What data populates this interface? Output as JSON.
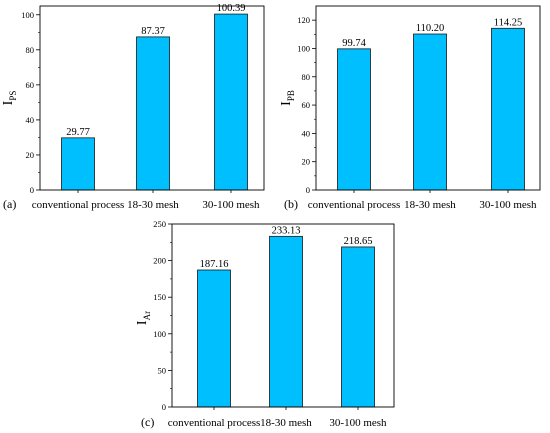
{
  "bar_color": "#00BFFF",
  "chart_data": [
    {
      "type": "bar",
      "panel_label": "(a)",
      "ylabel": "I",
      "ylabel_sub": "PS",
      "categories": [
        "conventional process",
        "18-30 mesh",
        "30-100 mesh"
      ],
      "values": [
        29.77,
        87.37,
        100.39
      ],
      "value_labels": [
        "29.77",
        "87.37",
        "100.39"
      ],
      "ylim": [
        0,
        105
      ],
      "yticks": [
        0,
        20,
        40,
        60,
        80,
        100
      ],
      "ytick_labels": [
        "0",
        "20",
        "40",
        "60",
        "80",
        "100"
      ],
      "grid": false
    },
    {
      "type": "bar",
      "panel_label": "(b)",
      "ylabel": "I",
      "ylabel_sub": "PB",
      "categories": [
        "conventional process",
        "18-30 mesh",
        "30-100 mesh"
      ],
      "values": [
        99.74,
        110.2,
        114.25
      ],
      "value_labels": [
        "99.74",
        "110.20",
        "114.25"
      ],
      "ylim": [
        0,
        130
      ],
      "yticks": [
        0,
        20,
        40,
        60,
        80,
        100,
        120
      ],
      "ytick_labels": [
        "0",
        "20",
        "40",
        "60",
        "80",
        "100",
        "120"
      ],
      "grid": false
    },
    {
      "type": "bar",
      "panel_label": "(c)",
      "ylabel": "I",
      "ylabel_sub": "Ar",
      "categories": [
        "conventional process",
        "18-30 mesh",
        "30-100 mesh"
      ],
      "values": [
        187.16,
        233.13,
        218.65
      ],
      "value_labels": [
        "187.16",
        "233.13",
        "218.65"
      ],
      "ylim": [
        0,
        250
      ],
      "yticks": [
        0,
        50,
        100,
        150,
        200,
        250
      ],
      "ytick_labels": [
        "0",
        "50",
        "100",
        "150",
        "200",
        "250"
      ],
      "grid": false
    }
  ]
}
